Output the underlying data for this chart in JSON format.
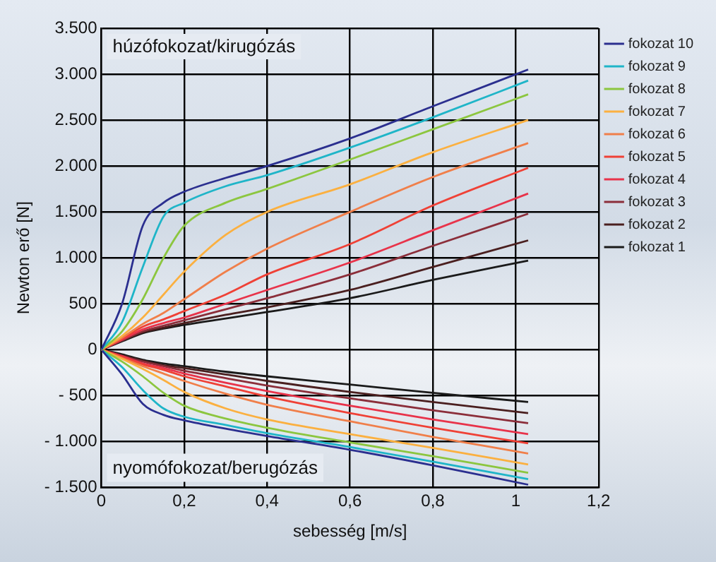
{
  "chart_data": {
    "type": "line",
    "xlabel": "sebesség [m/s]",
    "ylabel": "Newton erő [N]",
    "x": [
      0,
      0.05,
      0.1,
      0.15,
      0.2,
      0.3,
      0.4,
      0.6,
      0.8,
      1.03
    ],
    "xlim": [
      0,
      1.2
    ],
    "xticks": [
      0,
      {
        "value": 0.2,
        "label": "0,2"
      },
      {
        "value": 0.4,
        "label": "0,4"
      },
      {
        "value": 0.6,
        "label": "0,6"
      },
      {
        "value": 0.8,
        "label": "0,8"
      },
      {
        "value": 1,
        "label": "1"
      },
      {
        "value": 1.2,
        "label": "1,2"
      }
    ],
    "ylim": [
      -1500,
      3500
    ],
    "yticks": [
      {
        "value": -1500,
        "label": "- 1.500"
      },
      {
        "value": -1000,
        "label": "- 1.000"
      },
      {
        "value": -500,
        "label": "- 500"
      },
      0,
      500,
      {
        "value": 1000,
        "label": "1.000"
      },
      {
        "value": 1500,
        "label": "1.500"
      },
      {
        "value": 2000,
        "label": "2.000"
      },
      {
        "value": 2500,
        "label": "2.500"
      },
      {
        "value": 3000,
        "label": "3.000"
      },
      {
        "value": 3500,
        "label": "3.500"
      }
    ],
    "grid": true,
    "legend": "right",
    "marker": "none",
    "line_style": "solid",
    "annotations": [
      "húzófokozat/kirugózás",
      "nyomófokozat/berugózás"
    ],
    "series": [
      {
        "name": "fokozat 10",
        "color": "#2b2f8f",
        "values": [
          0,
          500,
          1350,
          1600,
          1720,
          1870,
          2000,
          2300,
          2650,
          3050
        ]
      },
      {
        "name": "fokozat 9",
        "color": "#1fb5c8",
        "values": [
          0,
          300,
          900,
          1450,
          1600,
          1780,
          1900,
          2200,
          2530,
          2930
        ]
      },
      {
        "name": "fokozat 8",
        "color": "#8cc63f",
        "values": [
          0,
          200,
          550,
          1000,
          1350,
          1600,
          1750,
          2070,
          2400,
          2780
        ]
      },
      {
        "name": "fokozat 7",
        "color": "#fbb040",
        "values": [
          0,
          150,
          350,
          600,
          850,
          1250,
          1500,
          1800,
          2150,
          2500
        ]
      },
      {
        "name": "fokozat 6",
        "color": "#f07f4a",
        "values": [
          0,
          130,
          280,
          400,
          550,
          850,
          1100,
          1500,
          1880,
          2250
        ]
      },
      {
        "name": "fokozat 5",
        "color": "#ef4136",
        "values": [
          0,
          120,
          250,
          330,
          420,
          600,
          820,
          1150,
          1570,
          1980
        ]
      },
      {
        "name": "fokozat 4",
        "color": "#e8334a",
        "values": [
          0,
          110,
          220,
          290,
          350,
          500,
          650,
          950,
          1300,
          1700
        ]
      },
      {
        "name": "fokozat 3",
        "color": "#8b2e3a",
        "values": [
          0,
          100,
          200,
          260,
          320,
          440,
          560,
          820,
          1130,
          1480
        ]
      },
      {
        "name": "fokozat 2",
        "color": "#4a1f1f",
        "values": [
          0,
          100,
          190,
          240,
          290,
          380,
          460,
          650,
          900,
          1190
        ]
      },
      {
        "name": "fokozat 1",
        "color": "#1a1a1a",
        "values": [
          0,
          90,
          180,
          230,
          270,
          340,
          410,
          560,
          760,
          970
        ]
      },
      {
        "color": "#2b2f8f",
        "values": [
          0,
          -270,
          -590,
          -710,
          -770,
          -860,
          -940,
          -1090,
          -1260,
          -1470
        ]
      },
      {
        "color": "#1fb5c8",
        "values": [
          0,
          -190,
          -440,
          -640,
          -730,
          -820,
          -910,
          -1060,
          -1220,
          -1410
        ]
      },
      {
        "color": "#8cc63f",
        "values": [
          0,
          -130,
          -290,
          -470,
          -610,
          -750,
          -850,
          -1010,
          -1160,
          -1340
        ]
      },
      {
        "color": "#fbb040",
        "values": [
          0,
          -100,
          -210,
          -330,
          -460,
          -640,
          -760,
          -920,
          -1070,
          -1250
        ]
      },
      {
        "color": "#f07f4a",
        "values": [
          0,
          -90,
          -180,
          -260,
          -340,
          -480,
          -600,
          -780,
          -950,
          -1130
        ]
      },
      {
        "color": "#ef4136",
        "values": [
          0,
          -80,
          -160,
          -220,
          -290,
          -400,
          -510,
          -690,
          -850,
          -1020
        ]
      },
      {
        "color": "#e8334a",
        "values": [
          0,
          -70,
          -150,
          -200,
          -260,
          -360,
          -450,
          -610,
          -760,
          -920
        ]
      },
      {
        "color": "#8b2e3a",
        "values": [
          0,
          -70,
          -130,
          -180,
          -230,
          -310,
          -390,
          -530,
          -660,
          -800
        ]
      },
      {
        "color": "#4a1f1f",
        "values": [
          0,
          -60,
          -120,
          -170,
          -200,
          -270,
          -340,
          -460,
          -570,
          -690
        ]
      },
      {
        "color": "#1a1a1a",
        "values": [
          0,
          -50,
          -110,
          -150,
          -180,
          -240,
          -290,
          -380,
          -470,
          -570
        ]
      }
    ]
  }
}
